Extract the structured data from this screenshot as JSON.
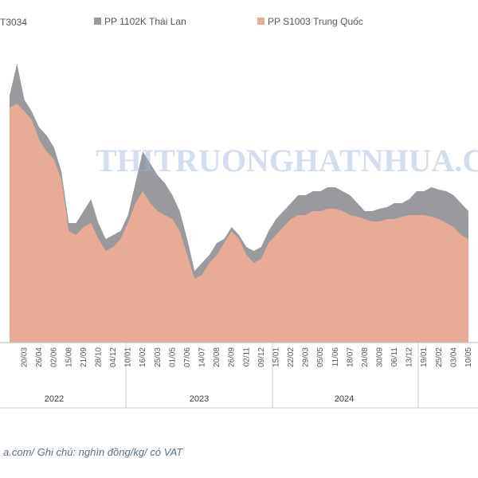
{
  "chart_data": {
    "type": "area",
    "legend_partial": "T3034",
    "watermark": "THITRUONGHATNHUA.COM",
    "footnote": "a.com/ Ghi chú: nghìn đồng/kg/ có VAT",
    "years": [
      "2022",
      "2023",
      "2024"
    ],
    "categories": [
      null,
      null,
      "20/03",
      null,
      "26/04",
      null,
      "02/06",
      null,
      "15/08",
      null,
      "21/09",
      null,
      "28/10",
      null,
      "04/12",
      null,
      "10/01",
      null,
      "16/02",
      null,
      "25/03",
      null,
      "01/05",
      null,
      "07/06",
      null,
      "14/07",
      null,
      "20/08",
      null,
      "26/09",
      null,
      "02/11",
      null,
      "09/12",
      null,
      "15/01",
      null,
      "22/02",
      null,
      "29/03",
      null,
      "05/05",
      null,
      "11/06",
      null,
      "18/07",
      null,
      "24/08",
      null,
      "30/09",
      null,
      "06/11",
      null,
      "13/12",
      null,
      "19/01",
      null,
      "25/02",
      null,
      "03/04",
      null,
      "10/05"
    ],
    "series": [
      {
        "name": "PP 1102K Thái Lan",
        "color": "#9a9a9e",
        "values": [
          31,
          35,
          30.5,
          29,
          27,
          26,
          24.5,
          21.5,
          15,
          15,
          16.5,
          18,
          15,
          13,
          13.5,
          14,
          16,
          20,
          24,
          22.5,
          21,
          20,
          18.5,
          16.5,
          13,
          9,
          10,
          11,
          12.5,
          13,
          14.5,
          13.5,
          12,
          11.5,
          12,
          14,
          15.5,
          16.5,
          17.5,
          18.5,
          18.5,
          19,
          19,
          19.5,
          19.5,
          19,
          18.5,
          17.5,
          16.5,
          16.5,
          16.8,
          17,
          17.5,
          17.5,
          18,
          19,
          19,
          19.5,
          19.2,
          19,
          18.5,
          17.5,
          16.5
        ]
      },
      {
        "name": "PP S1003 Trung Quốc",
        "color": "#e8ab95",
        "values": [
          29.5,
          30,
          29,
          28,
          25.5,
          24,
          23,
          20.5,
          14,
          13.5,
          14.5,
          15,
          13,
          11.5,
          12,
          13,
          15,
          17.5,
          19,
          17.5,
          16.5,
          16,
          15.5,
          14,
          11,
          8,
          8.5,
          10,
          11,
          12.5,
          14,
          13,
          11,
          10,
          10.5,
          12.5,
          13.5,
          14.5,
          15.5,
          16,
          16,
          16.5,
          16.5,
          16.8,
          16.8,
          16.5,
          16,
          15.8,
          15.5,
          15.2,
          15.2,
          15.5,
          15.5,
          15.8,
          16,
          16,
          16,
          15.8,
          15.5,
          15,
          14.5,
          13.5,
          13
        ]
      }
    ],
    "ylim": [
      0,
      40
    ]
  }
}
